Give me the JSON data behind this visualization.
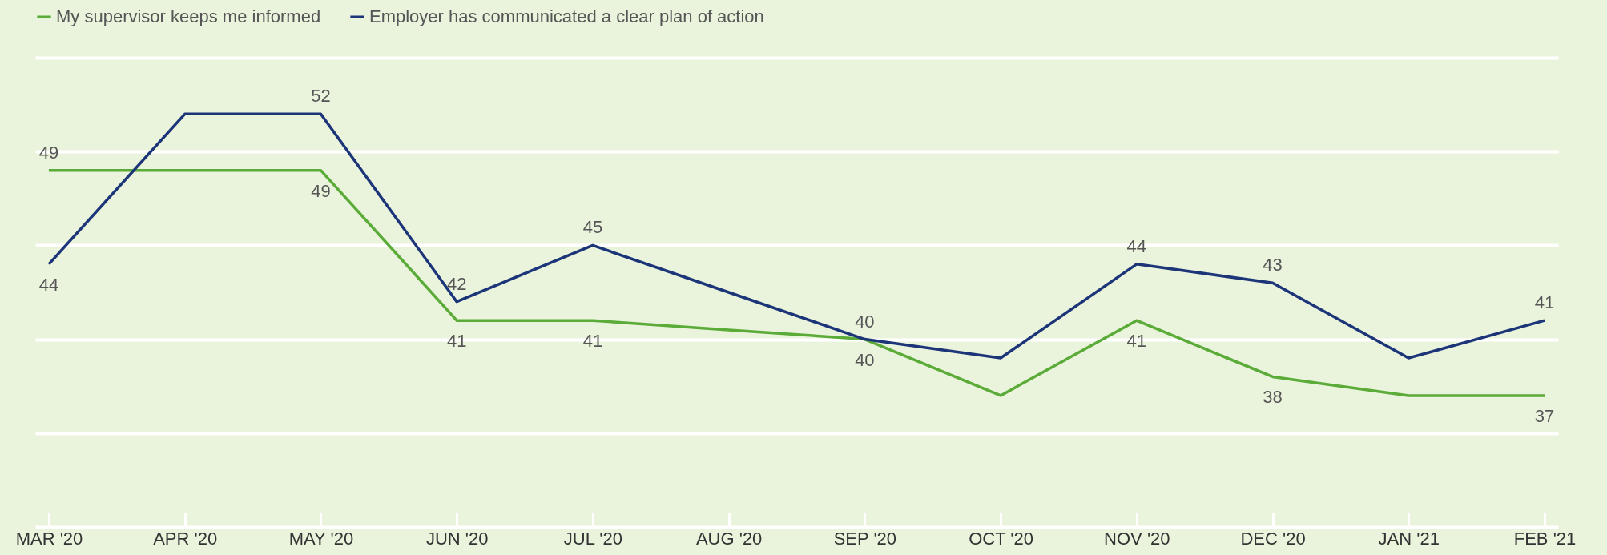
{
  "chart_data": {
    "type": "line",
    "categories": [
      "MAR '20",
      "APR '20",
      "MAY '20",
      "JUN '20",
      "JUL '20",
      "AUG '20",
      "SEP '20",
      "OCT '20",
      "NOV '20",
      "DEC '20",
      "JAN '21",
      "FEB '21"
    ],
    "series": [
      {
        "name": "My supervisor keeps me informed",
        "color": "#5aab37",
        "values": [
          49,
          49,
          49,
          41,
          41,
          40.5,
          40,
          37,
          41,
          38,
          37,
          37
        ],
        "value_labels": [
          "49",
          null,
          "49",
          "41",
          "41",
          null,
          "40",
          null,
          "41",
          "38",
          null,
          "37"
        ]
      },
      {
        "name": "Employer has communicated a clear plan of action",
        "color": "#1c3578",
        "values": [
          44,
          52,
          52,
          42,
          45,
          42.5,
          40,
          39,
          44,
          43,
          39,
          41
        ],
        "value_labels": [
          "44",
          null,
          "52",
          "42",
          "45",
          null,
          "40",
          null,
          "44",
          "43",
          null,
          "41"
        ]
      }
    ],
    "ylim": [
      30,
      55
    ],
    "yticks": [
      {
        "value": 30,
        "label": null
      },
      {
        "value": 35,
        "label": null
      },
      {
        "value": 40,
        "label": null
      },
      {
        "value": 45,
        "label": null
      },
      {
        "value": 50,
        "label": null
      },
      {
        "value": 55,
        "label": null
      }
    ],
    "grid": "y",
    "legend": "top left",
    "tick_labels": "x",
    "marker": "none",
    "line_style": "solid"
  }
}
